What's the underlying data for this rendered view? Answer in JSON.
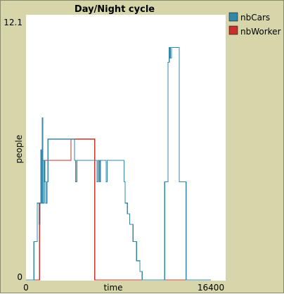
{
  "colors": {
    "background": "#d6d6aa",
    "plot_background": "#ffffff",
    "nbCars": "#3588a8",
    "nbWorker": "#c8302c"
  },
  "chart_data": {
    "type": "line",
    "title": "Day/Night cycle",
    "xlabel": "time",
    "ylabel": "people",
    "xlim": [
      0,
      16400
    ],
    "ylim": [
      0,
      12.1
    ],
    "x_tick_labels": [
      "0",
      "16400"
    ],
    "y_tick_labels": [
      "0",
      "12.1"
    ],
    "grid": false,
    "legend_position": "right",
    "series": [
      {
        "name": "nbCars",
        "color": "#3588a8",
        "step": true,
        "points": [
          [
            0,
            0
          ],
          [
            700,
            0
          ],
          [
            700,
            1.8
          ],
          [
            1000,
            1.8
          ],
          [
            1000,
            3.6
          ],
          [
            1150,
            3.6
          ],
          [
            1150,
            2.6
          ],
          [
            1250,
            2.6
          ],
          [
            1250,
            3.6
          ],
          [
            1330,
            3.6
          ],
          [
            1330,
            6.1
          ],
          [
            1390,
            6.1
          ],
          [
            1390,
            3.6
          ],
          [
            1450,
            3.6
          ],
          [
            1450,
            7.6
          ],
          [
            1500,
            7.6
          ],
          [
            1500,
            3.6
          ],
          [
            1600,
            3.6
          ],
          [
            1600,
            5.6
          ],
          [
            1680,
            5.6
          ],
          [
            1680,
            4.6
          ],
          [
            1750,
            4.6
          ],
          [
            1750,
            3.6
          ],
          [
            1850,
            3.6
          ],
          [
            1850,
            4.6
          ],
          [
            1950,
            4.6
          ],
          [
            1950,
            6.6
          ],
          [
            4300,
            6.6
          ],
          [
            4300,
            5.6
          ],
          [
            4400,
            5.6
          ],
          [
            4400,
            4.6
          ],
          [
            4500,
            4.6
          ],
          [
            4500,
            5.6
          ],
          [
            6300,
            5.6
          ],
          [
            6300,
            4.6
          ],
          [
            6400,
            4.6
          ],
          [
            6400,
            5.6
          ],
          [
            6500,
            5.6
          ],
          [
            6500,
            4.6
          ],
          [
            6600,
            4.6
          ],
          [
            6600,
            5.6
          ],
          [
            7100,
            5.6
          ],
          [
            7100,
            4.6
          ],
          [
            7200,
            4.6
          ],
          [
            7200,
            5.6
          ],
          [
            8700,
            5.6
          ],
          [
            8700,
            4.6
          ],
          [
            8800,
            4.6
          ],
          [
            8800,
            3.6
          ],
          [
            9000,
            3.6
          ],
          [
            9000,
            3.1
          ],
          [
            9200,
            3.1
          ],
          [
            9200,
            2.6
          ],
          [
            9500,
            2.6
          ],
          [
            9500,
            1.8
          ],
          [
            9800,
            1.8
          ],
          [
            9800,
            0.9
          ],
          [
            10100,
            0.9
          ],
          [
            10100,
            0.4
          ],
          [
            10300,
            0.4
          ],
          [
            10300,
            0
          ],
          [
            12300,
            0
          ],
          [
            12300,
            4.6
          ],
          [
            12600,
            4.6
          ],
          [
            12600,
            10.2
          ],
          [
            12700,
            10.2
          ],
          [
            12700,
            10.9
          ],
          [
            12800,
            10.9
          ],
          [
            12800,
            10.4
          ],
          [
            12900,
            10.4
          ],
          [
            12900,
            10.9
          ],
          [
            13600,
            10.9
          ],
          [
            13600,
            4.6
          ],
          [
            14200,
            4.6
          ],
          [
            14200,
            0
          ],
          [
            16400,
            0
          ]
        ]
      },
      {
        "name": "nbWorker",
        "color": "#c8302c",
        "step": true,
        "points": [
          [
            0,
            0
          ],
          [
            1200,
            0
          ],
          [
            1200,
            3.6
          ],
          [
            1400,
            3.6
          ],
          [
            1400,
            5.6
          ],
          [
            4000,
            5.6
          ],
          [
            4000,
            6.6
          ],
          [
            6100,
            6.6
          ],
          [
            6100,
            0
          ],
          [
            16400,
            0
          ]
        ]
      }
    ]
  }
}
